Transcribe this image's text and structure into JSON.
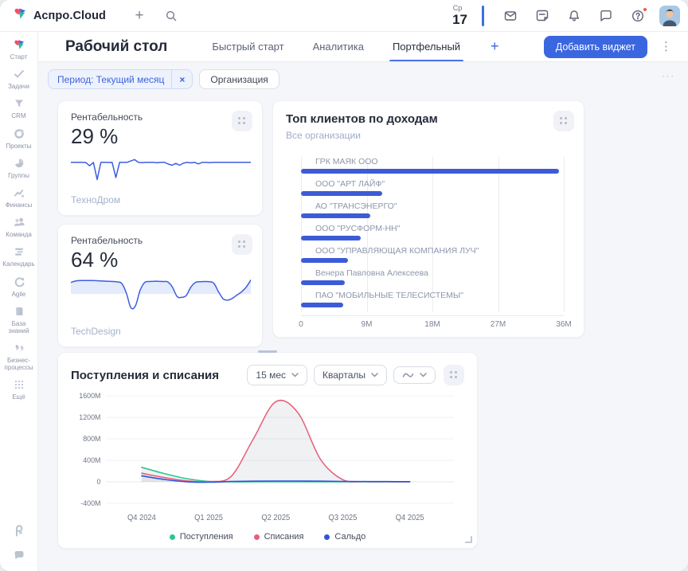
{
  "glyphs": {
    "plus": "+",
    "close": "×",
    "kebab": "⋮",
    "more": "···"
  },
  "topbar": {
    "app_name": "Аспро.Cloud",
    "date": {
      "weekday": "Ср",
      "day": "17"
    }
  },
  "sidebar": {
    "items": [
      {
        "label": "Старт"
      },
      {
        "label": "Задачи"
      },
      {
        "label": "CRM"
      },
      {
        "label": "Проекты"
      },
      {
        "label": "Группы"
      },
      {
        "label": "Финансы"
      },
      {
        "label": "Команда"
      },
      {
        "label": "Календарь"
      },
      {
        "label": "Agile"
      },
      {
        "label": "База знаний"
      },
      {
        "label": "Бизнес-процессы"
      },
      {
        "label": "Ещё"
      }
    ]
  },
  "header": {
    "title": "Рабочий стол",
    "tabs": [
      {
        "label": "Быстрый старт",
        "active": false
      },
      {
        "label": "Аналитика",
        "active": false
      },
      {
        "label": "Портфельный",
        "active": true
      }
    ],
    "add_widget_label": "Добавить виджет"
  },
  "filters": {
    "period_label": "Период: Текущий месяц",
    "org_label": "Организация"
  },
  "widgets": {
    "profit_a": {
      "title": "Рентабельность",
      "value": "29 %",
      "footer": "ТехноДром"
    },
    "profit_b": {
      "title": "Рентабельность",
      "value": "64 %",
      "footer": "TechDesign"
    },
    "top_clients": {
      "title": "Топ клиентов по доходам",
      "subtitle": "Все организации"
    },
    "flows": {
      "title": "Поступления и списания",
      "period_select": "15 мес",
      "group_select": "Кварталы"
    }
  },
  "chart_data": [
    {
      "id": "profit_a_spark",
      "type": "line",
      "smooth": false,
      "color": "#3d5de0",
      "ylim": [
        0,
        45
      ],
      "values": [
        29,
        29,
        29,
        29,
        28.7,
        24,
        29,
        4,
        29,
        29,
        28.8,
        29,
        7,
        29,
        29,
        29,
        31,
        33,
        29,
        28.6,
        29,
        29,
        29,
        28.4,
        29,
        29,
        26.5,
        24.8,
        27.5,
        24.8,
        27.8,
        29,
        28.3,
        29,
        26.8,
        29,
        29,
        28.6,
        29,
        29,
        29,
        29,
        29,
        29,
        29,
        29,
        29,
        29,
        29
      ]
    },
    {
      "id": "profit_b_spark",
      "type": "area",
      "smooth": true,
      "color": "#3d5de0",
      "fill": "#e1e9fa",
      "ylim": [
        0,
        75
      ],
      "baseline": 37,
      "values": [
        62,
        65,
        66,
        66,
        66,
        66,
        65.5,
        65,
        64.5,
        64,
        63,
        60,
        40,
        8,
        12,
        45,
        62,
        64,
        64.5,
        64.5,
        64,
        63,
        52,
        32,
        30,
        34,
        52,
        62,
        63.5,
        64,
        63.5,
        60,
        42,
        27,
        24,
        28,
        35,
        42,
        52,
        67
      ]
    },
    {
      "id": "top_clients",
      "type": "bar",
      "orientation": "horizontal",
      "title": "Топ клиентов по доходам",
      "categories": [
        "ГРК МАЯК ООО",
        "ООО \"АРТ ЛАЙФ\"",
        "АО \"ТРАНСЭНЕРГО\"",
        "ООО \"РУСФОРМ-НН\"",
        "ООО \"УПРАВЛЯЮЩАЯ КОМПАНИЯ ЛУЧ\"",
        "Венера Павловна Алексеева",
        "ПАО \"МОБИЛЬНЫЕ ТЕЛЕСИСТЕМЫ\""
      ],
      "values": [
        35.3,
        11.1,
        9.5,
        8.2,
        6.4,
        6.0,
        5.8
      ],
      "unit": "M",
      "xlim": [
        0,
        36
      ],
      "xticks": [
        "0",
        "9M",
        "18M",
        "27M",
        "36M"
      ],
      "bar_color": "#3c5cd7",
      "grid": true
    },
    {
      "id": "flows",
      "type": "area",
      "smooth": true,
      "title": "Поступления и списания",
      "x_ticks": [
        "Q4 2024",
        "Q1 2025",
        "Q2 2025",
        "Q3 2025",
        "Q4 2025"
      ],
      "y_ticks": [
        "1600M",
        "1200M",
        "800M",
        "400M",
        "0",
        "-400M"
      ],
      "ylim": [
        -400,
        1600
      ],
      "area_color": "rgba(110,120,140,0.10)",
      "legend_position": "bottom",
      "series": [
        {
          "name": "Поступления",
          "color": "#2cc692",
          "area": true,
          "values": [
            270,
            155,
            60,
            8,
            0,
            0,
            0,
            0,
            0,
            0,
            0,
            0,
            0
          ]
        },
        {
          "name": "Списания",
          "color": "#e65f78",
          "area": true,
          "values": [
            160,
            80,
            18,
            5,
            100,
            800,
            1490,
            1280,
            420,
            40,
            4,
            2,
            2
          ]
        },
        {
          "name": "Сальдо",
          "color": "#2f55dd",
          "area": false,
          "values": [
            110,
            45,
            2,
            -8,
            6,
            12,
            15,
            15,
            12,
            8,
            5,
            4,
            3
          ]
        }
      ]
    }
  ]
}
